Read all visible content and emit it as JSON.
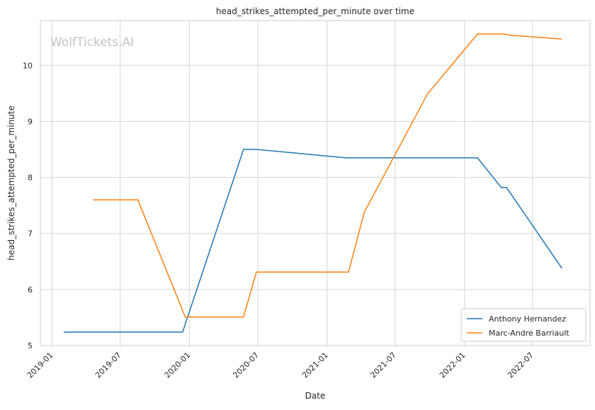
{
  "chart_data": {
    "type": "line",
    "title": "head_strikes_attempted_per_minute over time",
    "xlabel": "Date",
    "ylabel": "head_strikes_attempted_per_minute",
    "watermark": "WolfTickets.AI",
    "x_ticks": [
      "2019-01",
      "2019-07",
      "2020-01",
      "2020-07",
      "2021-01",
      "2021-07",
      "2022-01",
      "2022-07"
    ],
    "y_ticks": [
      5,
      6,
      7,
      8,
      9,
      10
    ],
    "xlim": [
      "2018-12-01",
      "2022-12-01"
    ],
    "ylim": [
      5,
      10.8
    ],
    "grid": true,
    "legend_position": "bottom-right",
    "series": [
      {
        "name": "Anthony Hernandez",
        "color": "#1f77b4",
        "points": [
          {
            "x": "2019-02-01",
            "y": 5.24
          },
          {
            "x": "2019-12-14",
            "y": 5.24
          },
          {
            "x": "2020-05-24",
            "y": 8.5
          },
          {
            "x": "2020-06-27",
            "y": 8.5
          },
          {
            "x": "2021-02-20",
            "y": 8.35
          },
          {
            "x": "2022-02-05",
            "y": 8.35
          },
          {
            "x": "2022-04-09",
            "y": 7.82
          },
          {
            "x": "2022-04-23",
            "y": 7.82
          },
          {
            "x": "2022-09-17",
            "y": 6.38
          }
        ]
      },
      {
        "name": "Marc-Andre Barriault",
        "color": "#ff7f0e",
        "points": [
          {
            "x": "2019-04-20",
            "y": 7.6
          },
          {
            "x": "2019-08-17",
            "y": 7.6
          },
          {
            "x": "2019-12-21",
            "y": 5.51
          },
          {
            "x": "2020-05-24",
            "y": 5.51
          },
          {
            "x": "2020-06-27",
            "y": 6.31
          },
          {
            "x": "2021-02-27",
            "y": 6.31
          },
          {
            "x": "2021-04-10",
            "y": 7.38
          },
          {
            "x": "2021-09-25",
            "y": 9.49
          },
          {
            "x": "2022-02-05",
            "y": 10.56
          },
          {
            "x": "2022-04-16",
            "y": 10.56
          },
          {
            "x": "2022-04-30",
            "y": 10.54
          },
          {
            "x": "2022-09-17",
            "y": 10.47
          }
        ]
      }
    ]
  }
}
